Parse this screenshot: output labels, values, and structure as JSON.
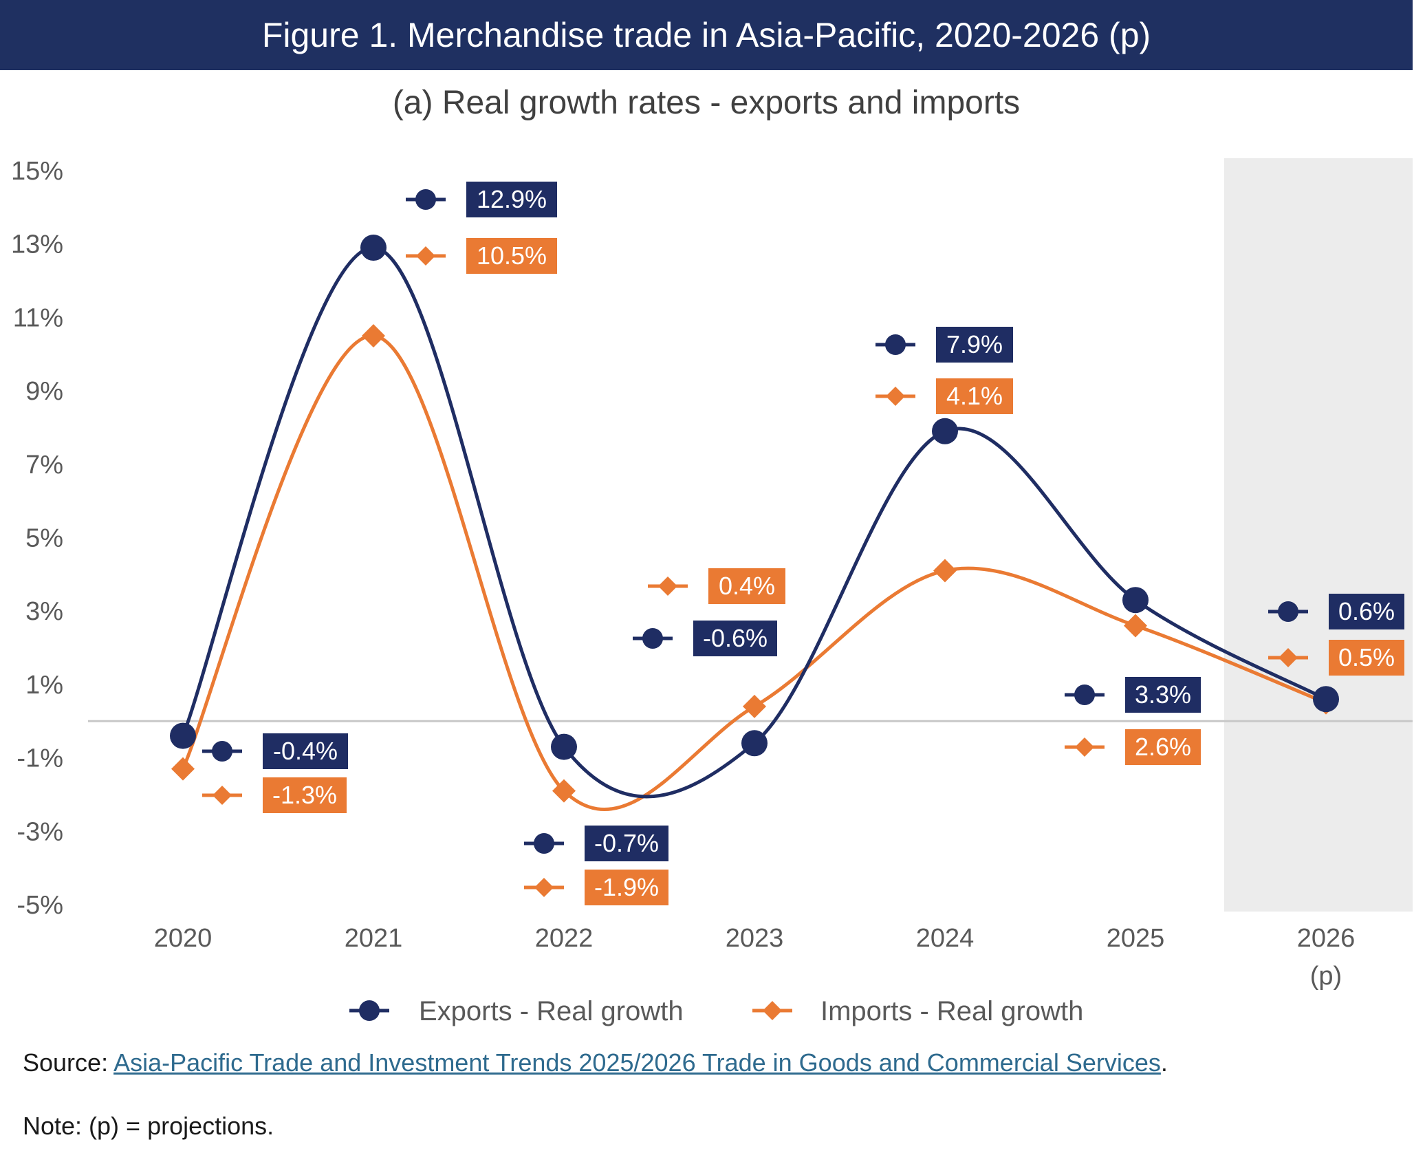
{
  "header": {
    "title": "Figure 1. Merchandise trade in Asia-Pacific, 2020-2026 (p)",
    "subtitle": "(a) Real growth rates - exports and imports"
  },
  "footer": {
    "source_prefix": "Source: ",
    "source_link": "Asia-Pacific Trade and Investment Trends 2025/2026 Trade in Goods and Commercial Services",
    "source_suffix": ".",
    "note": "Note: (p) = projections."
  },
  "colors": {
    "exports": "#1f2d63",
    "imports": "#ea7a33",
    "title_bar": "#1f3061",
    "projection_shade": "#ececec",
    "zero_line": "#c8c8c8"
  },
  "chart_data": {
    "type": "line",
    "title": "(a) Real growth rates - exports and imports",
    "xlabel": "",
    "ylabel": "",
    "categories": [
      "2020",
      "2021",
      "2022",
      "2023",
      "2024",
      "2025",
      "2026"
    ],
    "category_sublabels": [
      "",
      "",
      "",
      "",
      "",
      "",
      "(p)"
    ],
    "projected_categories": [
      "2026"
    ],
    "ylim": [
      -5,
      15
    ],
    "yticks": [
      15,
      13,
      11,
      9,
      7,
      5,
      3,
      1,
      -1,
      -3,
      -5
    ],
    "ytick_labels": [
      "15%",
      "13%",
      "11%",
      "9%",
      "7%",
      "5%",
      "3%",
      "1%",
      "-1%",
      "-3%",
      "-5%"
    ],
    "legend_position": "bottom",
    "series": [
      {
        "name": "Exports - Real growth",
        "marker": "circle",
        "values": [
          -0.4,
          12.9,
          -0.7,
          -0.6,
          7.9,
          3.3,
          0.6
        ],
        "labels": [
          "-0.4%",
          "12.9%",
          "-0.7%",
          "-0.6%",
          "7.9%",
          "3.3%",
          "0.6%"
        ]
      },
      {
        "name": "Imports - Real growth",
        "marker": "diamond",
        "values": [
          -1.3,
          10.5,
          -1.9,
          0.4,
          4.1,
          2.6,
          0.5
        ],
        "labels": [
          "-1.3%",
          "10.5%",
          "-1.9%",
          "0.4%",
          "4.1%",
          "2.6%",
          "0.5%"
        ]
      }
    ]
  }
}
